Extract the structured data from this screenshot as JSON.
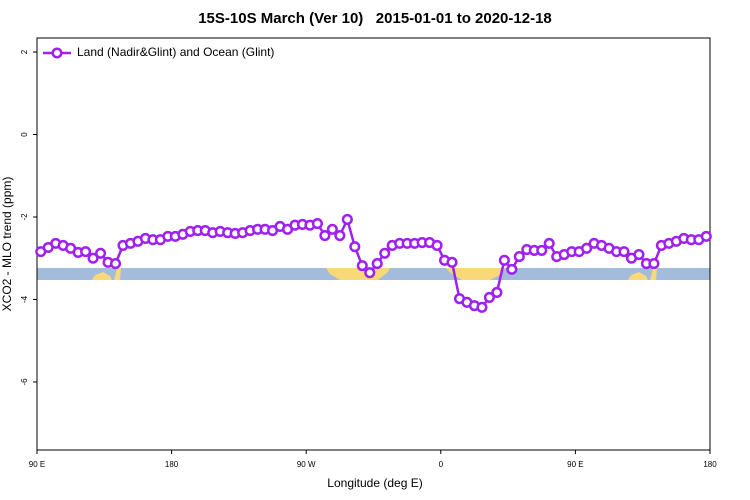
{
  "chart_data": {
    "type": "line",
    "title": "15S-10S March (Ver 10)   2015-01-01 to 2020-12-18",
    "x_label": "Longitude (deg E)",
    "y_label": "XCO2 - MLO trend (ppm)",
    "x": [
      92.5,
      97.5,
      102.5,
      107.5,
      112.5,
      117.5,
      122.5,
      127.5,
      132.5,
      137.5,
      142.5,
      147.5,
      152.5,
      157.5,
      162.5,
      167.5,
      172.5,
      177.5,
      182.5,
      187.5,
      192.5,
      197.5,
      202.5,
      207.5,
      212.5,
      217.5,
      222.5,
      227.5,
      232.5,
      237.5,
      242.5,
      247.5,
      252.5,
      257.5,
      262.5,
      267.5,
      272.5,
      277.5,
      282.5,
      287.5,
      292.5,
      297.5,
      302.5,
      307.5,
      312.5,
      317.5,
      322.5,
      327.5,
      332.5,
      337.5,
      342.5,
      347.5,
      352.5,
      357.5,
      362.5,
      367.5,
      372.5,
      377.5,
      382.5,
      387.5,
      392.5,
      397.5,
      402.5,
      407.5,
      412.5,
      417.5,
      422.5,
      427.5,
      432.5,
      437.5,
      442.5,
      447.5,
      452.5,
      457.5,
      462.5,
      467.5,
      472.5,
      477.5,
      482.5,
      487.5,
      492.5,
      497.5,
      502.5,
      507.5,
      512.5,
      517.5,
      522.5,
      527.5,
      532.5,
      537.5
    ],
    "series": [
      {
        "name": "Land (Nadir&Glint) and Ocean (Glint)",
        "color": "#a020f0",
        "values": [
          -2.84,
          -2.74,
          -2.64,
          -2.69,
          -2.76,
          -2.86,
          -2.84,
          -3.0,
          -2.88,
          -3.1,
          -3.13,
          -2.69,
          -2.64,
          -2.59,
          -2.52,
          -2.55,
          -2.55,
          -2.47,
          -2.47,
          -2.42,
          -2.35,
          -2.33,
          -2.33,
          -2.38,
          -2.35,
          -2.38,
          -2.4,
          -2.38,
          -2.33,
          -2.3,
          -2.3,
          -2.33,
          -2.23,
          -2.3,
          -2.2,
          -2.18,
          -2.2,
          -2.16,
          -2.45,
          -2.3,
          -2.45,
          -2.06,
          -2.72,
          -3.18,
          -3.35,
          -3.13,
          -2.88,
          -2.69,
          -2.64,
          -2.64,
          -2.64,
          -2.62,
          -2.62,
          -2.69,
          -3.05,
          -3.1,
          -3.98,
          -4.07,
          -4.15,
          -4.19,
          -3.95,
          -3.83,
          -3.05,
          -3.27,
          -2.96,
          -2.79,
          -2.81,
          -2.81,
          -2.64,
          -2.96,
          -2.91,
          -2.84,
          -2.84,
          -2.76,
          -2.64,
          -2.69,
          -2.76,
          -2.84,
          -2.84,
          -3.0,
          -2.91,
          -3.13,
          -3.13,
          -2.69,
          -2.64,
          -2.59,
          -2.52,
          -2.55,
          -2.55,
          -2.47
        ]
      }
    ],
    "xlim": [
      90,
      540
    ],
    "xticks": [
      {
        "value": 90,
        "label": "90 E"
      },
      180,
      {
        "value": 270,
        "label": "90 W"
      },
      {
        "value": 360,
        "label": "0"
      },
      {
        "value": 450,
        "label": "90 E"
      },
      {
        "value": 540,
        "label": "180"
      }
    ],
    "ylim": [
      -7.65,
      2.34
    ],
    "yticks": [
      -6,
      -4,
      -2,
      0,
      2
    ],
    "legend": "top-left"
  }
}
